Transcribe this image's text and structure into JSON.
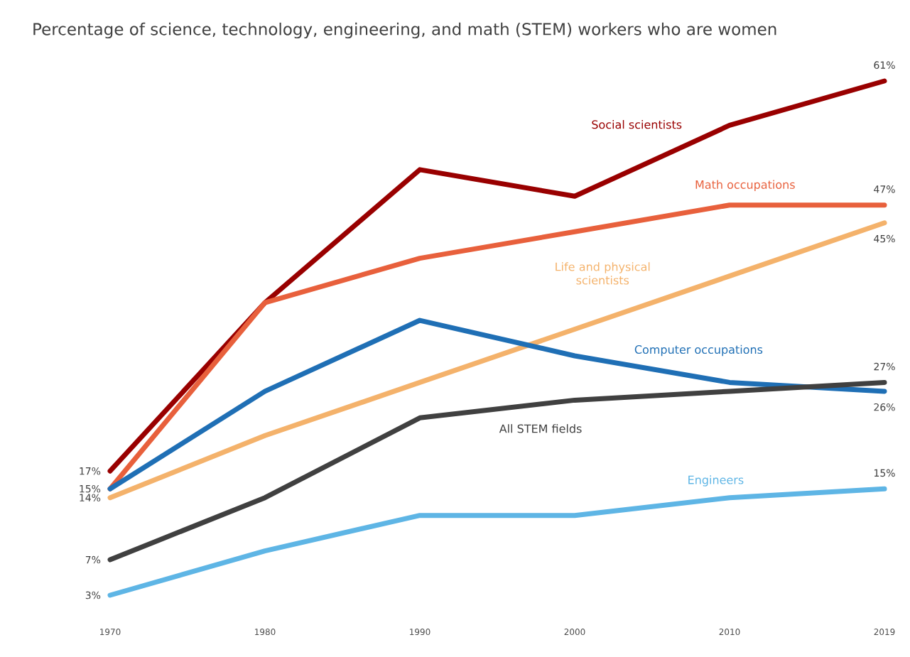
{
  "chart_data": {
    "type": "line",
    "title": "Percentage of science, technology, engineering, and math (STEM) workers who are women",
    "categories": [
      "1970",
      "1980",
      "1990",
      "2000",
      "2010",
      "2019"
    ],
    "series": [
      {
        "name": "Social scientists",
        "color": "#990000",
        "values": [
          17,
          36,
          51,
          48,
          56,
          61
        ],
        "value_labels": [
          "17%",
          null,
          null,
          null,
          null,
          "61%"
        ]
      },
      {
        "name": "Math occupations",
        "color": "#e8603c",
        "values": [
          15,
          36,
          41,
          44,
          47,
          47
        ],
        "value_labels": [
          null,
          null,
          null,
          null,
          null,
          "47%"
        ]
      },
      {
        "name": "Life and physical scientists",
        "color": "#f4b26b",
        "values": [
          14,
          21,
          27,
          33,
          39,
          45
        ],
        "value_labels": [
          "14%",
          null,
          null,
          null,
          null,
          "45%"
        ]
      },
      {
        "name": "Computer occupations",
        "color": "#1f6fb5",
        "values": [
          15,
          26,
          34,
          30,
          27,
          26
        ],
        "value_labels": [
          "15%",
          null,
          null,
          null,
          null,
          "26%"
        ]
      },
      {
        "name": "All STEM fields",
        "color": "#404040",
        "values": [
          7,
          14,
          23,
          25,
          26,
          27
        ],
        "value_labels": [
          "7%",
          null,
          null,
          null,
          null,
          "27%"
        ]
      },
      {
        "name": "Engineers",
        "color": "#5eb5e5",
        "values": [
          3,
          8,
          12,
          12,
          14,
          15
        ],
        "value_labels": [
          "3%",
          null,
          null,
          null,
          null,
          "15%"
        ]
      }
    ],
    "legend": false
  }
}
